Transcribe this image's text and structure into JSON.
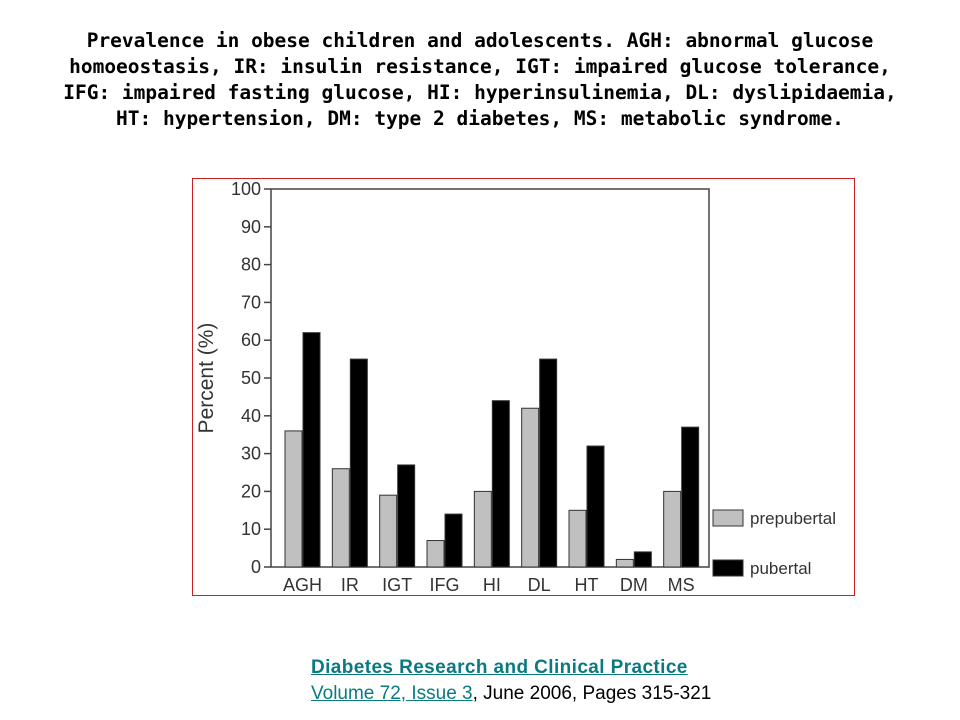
{
  "caption": {
    "lines": [
      "Prevalence in obese children and adolescents. AGH: abnormal glucose",
      "homoeostasis, IR: insulin resistance, IGT: impaired glucose tolerance,",
      "IFG: impaired fasting glucose, HI: hyperinsulinemia, DL: dyslipidaemia,",
      "HT: hypertension, DM: type 2 diabetes, MS: metabolic syndrome."
    ]
  },
  "citation": {
    "journal": "Diabetes Research and Clinical Practice",
    "volume_issue": "Volume 72, Issue 3",
    "rest": ", June 2006, Pages 315-321"
  },
  "chart_data": {
    "type": "bar",
    "ylabel": "Percent (%)",
    "xlabel": "",
    "ylim": [
      0,
      100
    ],
    "yticks": [
      0,
      10,
      20,
      30,
      40,
      50,
      60,
      70,
      80,
      90,
      100
    ],
    "categories": [
      "AGH",
      "IR",
      "IGT",
      "IFG",
      "HI",
      "DL",
      "HT",
      "DM",
      "MS"
    ],
    "series": [
      {
        "name": "prepubertal",
        "color": "#c0c0c0",
        "values": [
          36,
          26,
          19,
          7,
          20,
          42,
          15,
          2,
          20
        ]
      },
      {
        "name": "pubertal",
        "color": "#000000",
        "values": [
          62,
          55,
          27,
          14,
          44,
          55,
          32,
          4,
          37
        ]
      }
    ],
    "legend_position": "bottom-right, outside plot",
    "grid": false
  }
}
